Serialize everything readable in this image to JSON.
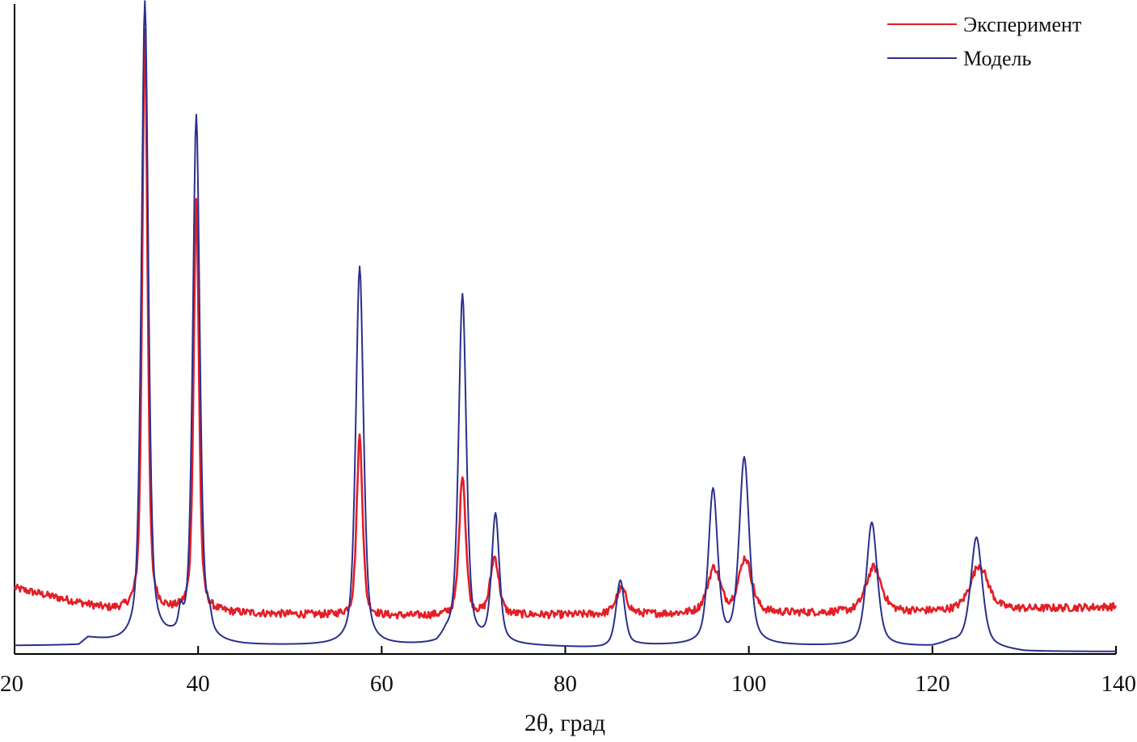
{
  "chart_data": {
    "type": "line",
    "xlabel": "2θ, град",
    "ylabel": "",
    "xlim": [
      20,
      140
    ],
    "ylim": [
      0,
      1
    ],
    "xticks": [
      20,
      40,
      60,
      80,
      100,
      120,
      140
    ],
    "yticks": [],
    "grid": false,
    "legend_position": "top-right",
    "x_resolution": 0.1,
    "series": [
      {
        "name": "Эксперимент",
        "color": "#e41e26",
        "style": "noisy",
        "background": [
          [
            20,
            0.09
          ],
          [
            30,
            0.057
          ],
          [
            33,
            0.053
          ],
          [
            40,
            0.052
          ],
          [
            60,
            0.046
          ],
          [
            80,
            0.048
          ],
          [
            100,
            0.05
          ],
          [
            120,
            0.053
          ],
          [
            140,
            0.061
          ]
        ],
        "peaks": [
          {
            "x": 34.2,
            "height": 0.91,
            "width": 0.34
          },
          {
            "x": 39.8,
            "height": 0.64,
            "width": 0.34
          },
          {
            "x": 57.6,
            "height": 0.28,
            "width": 0.38
          },
          {
            "x": 68.8,
            "height": 0.22,
            "width": 0.42
          },
          {
            "x": 72.3,
            "height": 0.09,
            "width": 0.55
          },
          {
            "x": 86.1,
            "height": 0.04,
            "width": 0.7
          },
          {
            "x": 96.2,
            "height": 0.07,
            "width": 0.85
          },
          {
            "x": 99.6,
            "height": 0.085,
            "width": 0.85
          },
          {
            "x": 113.6,
            "height": 0.07,
            "width": 1.0
          },
          {
            "x": 125.1,
            "height": 0.07,
            "width": 1.15
          }
        ]
      },
      {
        "name": "Модель",
        "color": "#2b2f8c",
        "style": "smooth",
        "background": [
          [
            20,
            0.0
          ],
          [
            27,
            0.0
          ],
          [
            28,
            0.011
          ],
          [
            30,
            0.006
          ],
          [
            33,
            0.0
          ],
          [
            37,
            0.005
          ],
          [
            41,
            0.002
          ],
          [
            45,
            0.0
          ],
          [
            60,
            0.0
          ],
          [
            66,
            0.0
          ],
          [
            67,
            0.011
          ],
          [
            70,
            0.002
          ],
          [
            84,
            -0.004
          ],
          [
            88,
            0.0
          ],
          [
            100,
            0.0
          ],
          [
            120,
            -0.002
          ],
          [
            122,
            0.004
          ],
          [
            124,
            0.0
          ],
          [
            130,
            -0.009
          ],
          [
            140,
            -0.009
          ]
        ],
        "peaks": [
          {
            "x": 34.2,
            "height": 1.0,
            "width": 0.45
          },
          {
            "x": 39.8,
            "height": 0.82,
            "width": 0.45
          },
          {
            "x": 38.1,
            "height": 0.03,
            "width": 0.25
          },
          {
            "x": 41.2,
            "height": 0.025,
            "width": 0.3
          },
          {
            "x": 57.6,
            "height": 0.59,
            "width": 0.5
          },
          {
            "x": 68.8,
            "height": 0.54,
            "width": 0.5
          },
          {
            "x": 72.4,
            "height": 0.2,
            "width": 0.5
          },
          {
            "x": 86.0,
            "height": 0.103,
            "width": 0.55
          },
          {
            "x": 96.1,
            "height": 0.24,
            "width": 0.6
          },
          {
            "x": 99.5,
            "height": 0.29,
            "width": 0.65
          },
          {
            "x": 113.4,
            "height": 0.193,
            "width": 0.7
          },
          {
            "x": 124.8,
            "height": 0.17,
            "width": 0.75
          }
        ]
      }
    ]
  }
}
